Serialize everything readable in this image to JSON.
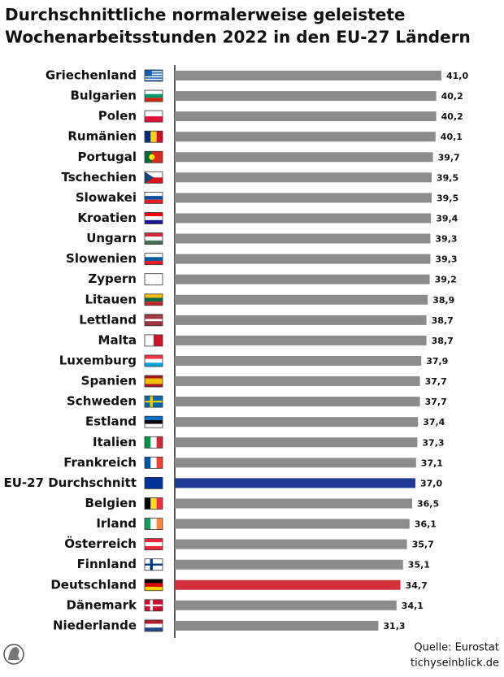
{
  "chart_data": {
    "type": "bar",
    "orientation": "horizontal",
    "title": "Durchschnittliche normalerweise geleistete Wochenarbeitsstunden 2022 in den EU-27 Ländern",
    "categories": [
      "Griechenland",
      "Bulgarien",
      "Polen",
      "Rumänien",
      "Portugal",
      "Tschechien",
      "Slowakei",
      "Kroatien",
      "Ungarn",
      "Slowenien",
      "Zypern",
      "Litauen",
      "Lettland",
      "Malta",
      "Luxemburg",
      "Spanien",
      "Schweden",
      "Estland",
      "Italien",
      "Frankreich",
      "EU-27 Durchschnitt",
      "Belgien",
      "Irland",
      "Österreich",
      "Finnland",
      "Deutschland",
      "Dänemark",
      "Niederlande"
    ],
    "values": [
      41.0,
      40.2,
      40.2,
      40.1,
      39.7,
      39.5,
      39.5,
      39.4,
      39.3,
      39.3,
      39.2,
      38.9,
      38.7,
      38.7,
      37.9,
      37.7,
      37.7,
      37.4,
      37.3,
      37.1,
      37.0,
      36.5,
      36.1,
      35.7,
      35.1,
      34.7,
      34.1,
      31.3
    ],
    "value_labels": [
      "41,0",
      "40,2",
      "40,2",
      "40,1",
      "39,7",
      "39,5",
      "39,5",
      "39,4",
      "39,3",
      "39,3",
      "39,2",
      "38,9",
      "38,7",
      "38,7",
      "37,9",
      "37,7",
      "37,7",
      "37,4",
      "37,3",
      "37,1",
      "37,0",
      "36,5",
      "36,1",
      "35,7",
      "35,1",
      "34,7",
      "34,1",
      "31,3"
    ],
    "colors": [
      "#8c8c8c",
      "#8c8c8c",
      "#8c8c8c",
      "#8c8c8c",
      "#8c8c8c",
      "#8c8c8c",
      "#8c8c8c",
      "#8c8c8c",
      "#8c8c8c",
      "#8c8c8c",
      "#8c8c8c",
      "#8c8c8c",
      "#8c8c8c",
      "#8c8c8c",
      "#8c8c8c",
      "#8c8c8c",
      "#8c8c8c",
      "#8c8c8c",
      "#8c8c8c",
      "#8c8c8c",
      "#1f3a93",
      "#8c8c8c",
      "#8c8c8c",
      "#8c8c8c",
      "#8c8c8c",
      "#d0313a",
      "#8c8c8c",
      "#8c8c8c"
    ],
    "source": "Quelle: Eurostat",
    "website": "tichyseinblick.de"
  }
}
